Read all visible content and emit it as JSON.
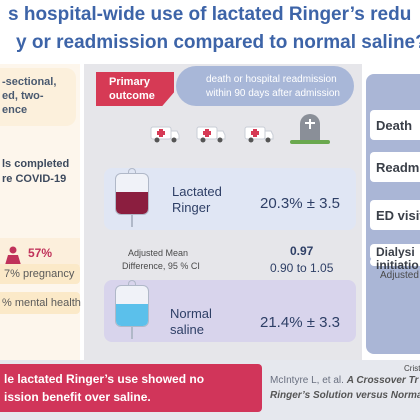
{
  "header": {
    "line1": "s hospital-wide use of lactated Ringer’s redu",
    "line2": "y or readmission compared to normal saline?"
  },
  "design": {
    "line1": "-sectional,",
    "line2": "ed, two-",
    "line3": "ence"
  },
  "hospitals": {
    "line1": "ls completed",
    "line2": "re COVID-19"
  },
  "demographics": {
    "female_pct": "57%",
    "female_label": "female",
    "pregnancy": "7% pregnancy",
    "mental_health": "% mental health"
  },
  "outcome": {
    "label_line1": "Primary",
    "label_line2": "outcome",
    "desc_line1": "death or hospital readmission",
    "desc_line2": "within 90 days after admission"
  },
  "arms": {
    "lr": {
      "name_line1": "Lactated",
      "name_line2": "Ringer",
      "value": "20.3% ± 3.5",
      "color": "#8b1e3f"
    },
    "ns": {
      "name_line1": "Normal",
      "name_line2": "saline",
      "value": "21.4% ± 3.3",
      "color": "#5bc0eb"
    }
  },
  "difference": {
    "label_line1": "Adjusted Mean",
    "label_line2": "Difference, 95 % CI",
    "value": "0.97",
    "ci": "0.90 to 1.05"
  },
  "secondary": {
    "items": [
      "Death",
      "Readmi",
      "ED visit",
      "Dialysi",
      "initiatio"
    ],
    "adjusted": "Adjusted"
  },
  "author": "Cristina",
  "footer": {
    "line1": "le lactated Ringer’s use showed no",
    "line2": "ission benefit over saline.",
    "cite_line1_prefix": "McIntyre L, et al. ",
    "cite_line1_title": "A Crossover Tr",
    "cite_line2": "Ringer’s Solution versus Norma"
  },
  "colors": {
    "header_text": "#3d64a8",
    "accent_red": "#d63a55",
    "panel_blue": "#e0e6f4",
    "panel_purple": "#d8d4ec"
  },
  "icons": {
    "female": "female-person-icon",
    "ambulance": "ambulance-icon",
    "tombstone": "tombstone-icon",
    "iv_bag": "iv-bag-icon"
  }
}
